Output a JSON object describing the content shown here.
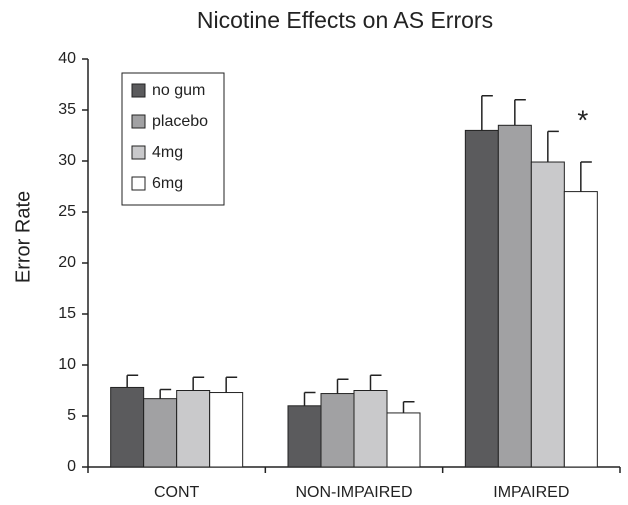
{
  "chart_data": {
    "type": "bar",
    "title": "Nicotine Effects on AS Errors",
    "y_label": "Error Rate",
    "categories": [
      "CONT",
      "NON-IMPAIRED",
      "IMPAIRED"
    ],
    "series": [
      {
        "name": "no gum",
        "color": "#5b5b5d",
        "values": [
          7.8,
          6.0,
          33.0
        ],
        "errors": [
          1.2,
          1.3,
          3.4
        ]
      },
      {
        "name": "placebo",
        "color": "#a1a1a3",
        "values": [
          6.7,
          7.2,
          33.5
        ],
        "errors": [
          0.9,
          1.4,
          2.5
        ]
      },
      {
        "name": "4mg",
        "color": "#c9c9cb",
        "values": [
          7.5,
          7.5,
          29.9
        ],
        "errors": [
          1.3,
          1.5,
          3.0
        ]
      },
      {
        "name": "6mg",
        "color": "#ffffff",
        "values": [
          7.3,
          5.3,
          27.0
        ],
        "errors": [
          1.5,
          1.1,
          2.9
        ]
      }
    ],
    "ylim": [
      0,
      40
    ],
    "yticks": [
      0,
      5,
      10,
      15,
      20,
      25,
      30,
      35,
      40
    ],
    "legend": "upper left",
    "annotation": "*"
  }
}
